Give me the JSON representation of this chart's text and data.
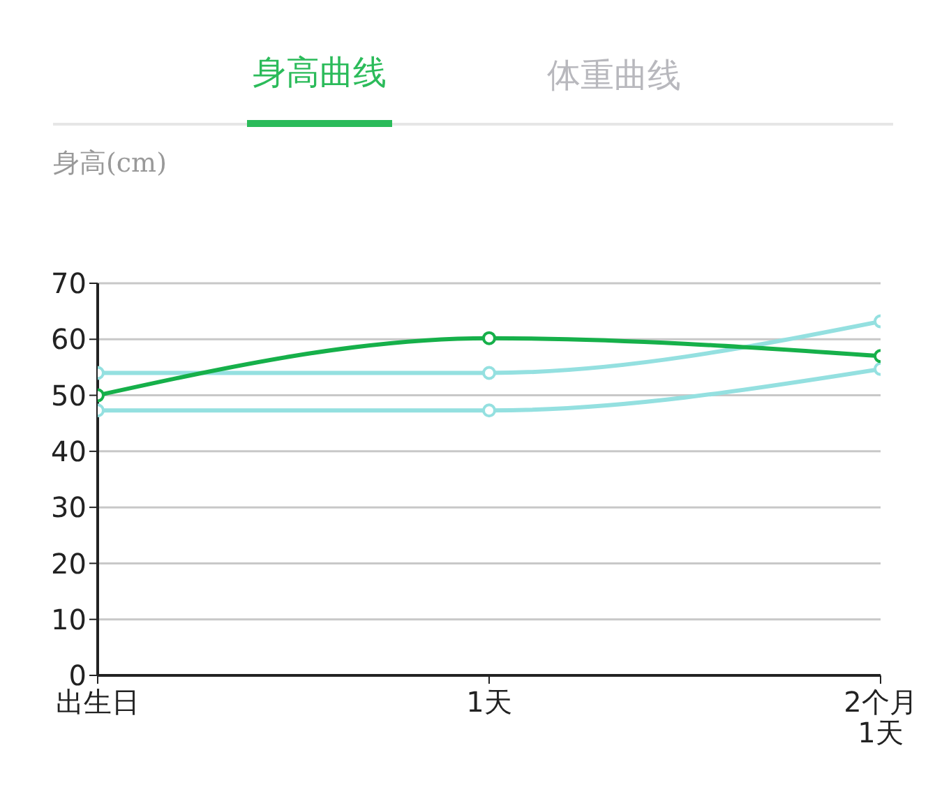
{
  "chart_data": {
    "type": "line",
    "title": "身高曲线",
    "annotations": [
      "体重曲线"
    ],
    "ylabel": "身高(cm)",
    "categories": [
      "出生日",
      "1天",
      "2个月1天"
    ],
    "series": [
      {
        "color": "#16b04a",
        "values": [
          50,
          60.2,
          57
        ]
      },
      {
        "color": "#94e0e0",
        "values": [
          54,
          54,
          63.2
        ]
      },
      {
        "color": "#94e0e0",
        "values": [
          47.3,
          47.3,
          54.7
        ]
      }
    ],
    "ylim": [
      0,
      70
    ],
    "yticks": [
      0,
      10,
      20,
      30,
      40,
      50,
      60,
      70
    ],
    "grid": "y",
    "legend": false,
    "marker": "circle",
    "line_style": "solid"
  }
}
